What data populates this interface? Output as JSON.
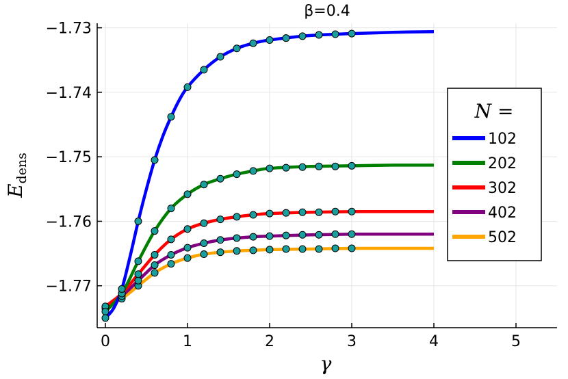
{
  "chart_data": {
    "type": "line",
    "title": "β=0.4",
    "xlabel": "γ",
    "ylabel": "E",
    "ylabel_subscript": "dens",
    "xlim": [
      -0.1,
      5.5
    ],
    "ylim": [
      -1.7765,
      -1.7293
    ],
    "x_ticks": [
      0,
      1,
      2,
      3,
      4,
      5
    ],
    "x_tick_labels": [
      "0",
      "1",
      "2",
      "3",
      "4",
      "5"
    ],
    "y_ticks": [
      -1.73,
      -1.74,
      -1.75,
      -1.76,
      -1.77
    ],
    "y_tick_labels": [
      "−1.73",
      "−1.74",
      "−1.75",
      "−1.76",
      "−1.77"
    ],
    "grid": true,
    "legend": {
      "title": "N =",
      "placement": "right"
    },
    "marker_color": "#1a9e9e",
    "series": [
      {
        "name": "102",
        "color": "#0000ff",
        "line": {
          "x": [
            0,
            0.1,
            0.2,
            0.3,
            0.4,
            0.5,
            0.6,
            0.7,
            0.8,
            0.9,
            1.0,
            1.2,
            1.4,
            1.6,
            1.8,
            2.0,
            2.5,
            3.0,
            3.5,
            4.0
          ],
          "y": [
            -1.775,
            -1.7735,
            -1.7705,
            -1.7655,
            -1.76,
            -1.755,
            -1.7505,
            -1.7468,
            -1.7438,
            -1.7412,
            -1.7392,
            -1.7365,
            -1.7345,
            -1.7332,
            -1.7324,
            -1.7319,
            -1.7312,
            -1.7309,
            -1.7307,
            -1.7306
          ]
        },
        "points": {
          "x": [
            0,
            0.2,
            0.4,
            0.6,
            0.8,
            1.0,
            1.2,
            1.4,
            1.6,
            1.8,
            2.0,
            2.2,
            2.4,
            2.6,
            2.8,
            3.0
          ],
          "y": [
            -1.775,
            -1.7705,
            -1.76,
            -1.7505,
            -1.7438,
            -1.7392,
            -1.7365,
            -1.7345,
            -1.7332,
            -1.7324,
            -1.7319,
            -1.7316,
            -1.7313,
            -1.7311,
            -1.731,
            -1.7309
          ]
        }
      },
      {
        "name": "202",
        "color": "#007f00",
        "line": {
          "x": [
            0,
            0.2,
            0.4,
            0.6,
            0.8,
            1.0,
            1.2,
            1.4,
            1.6,
            1.8,
            2.0,
            2.5,
            3.0,
            3.5,
            4.0
          ],
          "y": [
            -1.774,
            -1.7712,
            -1.7662,
            -1.7615,
            -1.758,
            -1.7558,
            -1.7543,
            -1.7534,
            -1.7527,
            -1.7522,
            -1.7518,
            -1.7515,
            -1.7514,
            -1.7513,
            -1.7513
          ]
        },
        "points": {
          "x": [
            0,
            0.2,
            0.4,
            0.6,
            0.8,
            1.0,
            1.2,
            1.4,
            1.6,
            1.8,
            2.0,
            2.2,
            2.4,
            2.6,
            2.8,
            3.0
          ],
          "y": [
            -1.774,
            -1.7712,
            -1.7662,
            -1.7615,
            -1.758,
            -1.7558,
            -1.7543,
            -1.7534,
            -1.7527,
            -1.7522,
            -1.7518,
            -1.7517,
            -1.7516,
            -1.7515,
            -1.7515,
            -1.7514
          ]
        }
      },
      {
        "name": "302",
        "color": "#ff0000",
        "line": {
          "x": [
            0,
            0.2,
            0.4,
            0.6,
            0.8,
            1.0,
            1.2,
            1.4,
            1.6,
            1.8,
            2.0,
            2.5,
            3.0,
            3.5,
            4.0
          ],
          "y": [
            -1.7732,
            -1.7712,
            -1.7682,
            -1.7652,
            -1.7628,
            -1.7612,
            -1.7603,
            -1.7597,
            -1.7593,
            -1.759,
            -1.7588,
            -1.7586,
            -1.7585,
            -1.7585,
            -1.7585
          ]
        },
        "points": {
          "x": [
            0,
            0.2,
            0.4,
            0.6,
            0.8,
            1.0,
            1.2,
            1.4,
            1.6,
            1.8,
            2.0,
            2.2,
            2.4,
            2.6,
            2.8,
            3.0
          ],
          "y": [
            -1.7732,
            -1.7712,
            -1.7682,
            -1.7652,
            -1.7628,
            -1.7612,
            -1.7603,
            -1.7597,
            -1.7593,
            -1.759,
            -1.7588,
            -1.7587,
            -1.7586,
            -1.7586,
            -1.7585,
            -1.7585
          ]
        }
      },
      {
        "name": "402",
        "color": "#800080",
        "line": {
          "x": [
            0,
            0.2,
            0.4,
            0.6,
            0.8,
            1.0,
            1.2,
            1.4,
            1.6,
            1.8,
            2.0,
            2.5,
            3.0,
            3.5,
            4.0
          ],
          "y": [
            -1.7735,
            -1.7716,
            -1.7692,
            -1.7668,
            -1.7652,
            -1.7641,
            -1.7634,
            -1.7629,
            -1.7626,
            -1.7624,
            -1.7623,
            -1.7621,
            -1.762,
            -1.762,
            -1.762
          ]
        },
        "points": {
          "x": [
            0,
            0.2,
            0.4,
            0.6,
            0.8,
            1.0,
            1.2,
            1.4,
            1.6,
            1.8,
            2.0,
            2.2,
            2.4,
            2.6,
            2.8,
            3.0
          ],
          "y": [
            -1.7735,
            -1.7716,
            -1.7692,
            -1.7668,
            -1.7652,
            -1.7641,
            -1.7634,
            -1.7629,
            -1.7626,
            -1.7624,
            -1.7623,
            -1.7622,
            -1.7621,
            -1.7621,
            -1.762,
            -1.762
          ]
        }
      },
      {
        "name": "502",
        "color": "#ffa500",
        "line": {
          "x": [
            0,
            0.2,
            0.4,
            0.6,
            0.8,
            1.0,
            1.2,
            1.4,
            1.6,
            1.8,
            2.0,
            2.5,
            3.0,
            3.5,
            4.0
          ],
          "y": [
            -1.7733,
            -1.772,
            -1.77,
            -1.768,
            -1.7666,
            -1.7657,
            -1.7651,
            -1.7648,
            -1.7646,
            -1.7645,
            -1.7644,
            -1.7643,
            -1.7642,
            -1.7642,
            -1.7642
          ]
        },
        "points": {
          "x": [
            0,
            0.2,
            0.4,
            0.6,
            0.8,
            1.0,
            1.2,
            1.4,
            1.6,
            1.8,
            2.0,
            2.2,
            2.4,
            2.6,
            2.8,
            3.0
          ],
          "y": [
            -1.7733,
            -1.772,
            -1.77,
            -1.768,
            -1.7666,
            -1.7657,
            -1.7651,
            -1.7648,
            -1.7646,
            -1.7645,
            -1.7644,
            -1.7643,
            -1.7643,
            -1.7643,
            -1.7642,
            -1.7642
          ]
        }
      }
    ]
  }
}
